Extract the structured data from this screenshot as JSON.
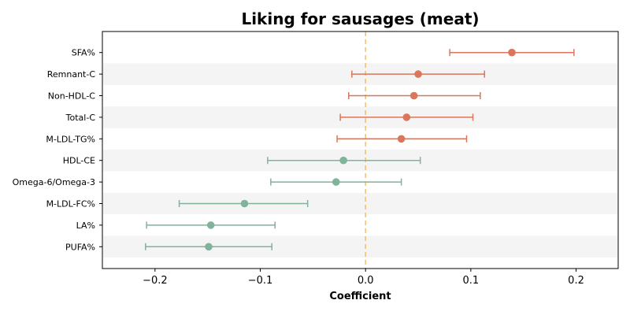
{
  "chart_data": {
    "type": "scatter",
    "title": "Liking for sausages (meat)",
    "xlabel": "Coefficient",
    "ylabel": "",
    "xlim": [
      -0.25,
      0.24
    ],
    "xticks": [
      -0.2,
      -0.1,
      0.0,
      0.1,
      0.2
    ],
    "xtick_labels": [
      "−0.2",
      "−0.1",
      "0.0",
      "0.1",
      "0.2"
    ],
    "reference_line": 0.0,
    "grid": false,
    "colors": {
      "positive": "#d9765b",
      "negative": "#80b39a",
      "reference": "#f0c27e",
      "band": "#f4f4f4"
    },
    "points": [
      {
        "label": "SFA%",
        "estimate": 0.139,
        "ci_low": 0.08,
        "ci_high": 0.198
      },
      {
        "label": "Remnant-C",
        "estimate": 0.05,
        "ci_low": -0.013,
        "ci_high": 0.113
      },
      {
        "label": "Non-HDL-C",
        "estimate": 0.046,
        "ci_low": -0.016,
        "ci_high": 0.109
      },
      {
        "label": "Total-C",
        "estimate": 0.039,
        "ci_low": -0.024,
        "ci_high": 0.102
      },
      {
        "label": "M-LDL-TG%",
        "estimate": 0.034,
        "ci_low": -0.027,
        "ci_high": 0.096
      },
      {
        "label": "HDL-CE",
        "estimate": -0.021,
        "ci_low": -0.093,
        "ci_high": 0.052
      },
      {
        "label": "Omega-6/Omega-3",
        "estimate": -0.028,
        "ci_low": -0.09,
        "ci_high": 0.034
      },
      {
        "label": "M-LDL-FC%",
        "estimate": -0.115,
        "ci_low": -0.177,
        "ci_high": -0.055
      },
      {
        "label": "LA%",
        "estimate": -0.147,
        "ci_low": -0.208,
        "ci_high": -0.086
      },
      {
        "label": "PUFA%",
        "estimate": -0.149,
        "ci_low": -0.209,
        "ci_high": -0.089
      }
    ]
  }
}
